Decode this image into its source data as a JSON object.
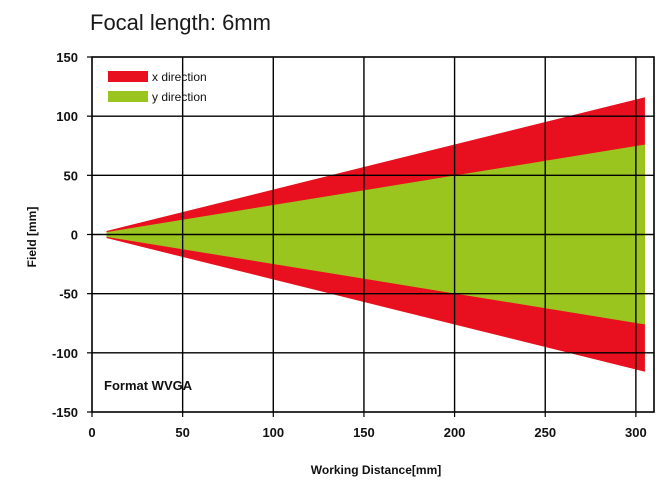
{
  "chart_data": {
    "type": "area",
    "title": "Focal length: 6mm",
    "xlabel": "Working Distance[mm]",
    "ylabel": "Field [mm]",
    "xlim": [
      0,
      310
    ],
    "ylim": [
      -150,
      150
    ],
    "x_ticks": [
      0,
      50,
      100,
      150,
      200,
      250,
      300
    ],
    "x_tick_labels": [
      "0",
      "50",
      "100",
      "150",
      "200",
      "250",
      "300"
    ],
    "y_ticks": [
      150,
      100,
      50,
      0,
      -50,
      -100,
      -150
    ],
    "y_tick_labels": [
      "150",
      "100",
      "50",
      "0",
      "-50",
      "-100",
      "-150"
    ],
    "grid": true,
    "legend_position": "top-left",
    "annotation": "Format WVGA",
    "series": [
      {
        "name": "x direction",
        "color": "#e8101e",
        "x": [
          8,
          305
        ],
        "upper": [
          3,
          116
        ],
        "lower": [
          -3,
          -116
        ]
      },
      {
        "name": "y direction",
        "color": "#9ac51e",
        "x": [
          8,
          305
        ],
        "upper": [
          2,
          76
        ],
        "lower": [
          -2,
          -76
        ]
      }
    ]
  }
}
